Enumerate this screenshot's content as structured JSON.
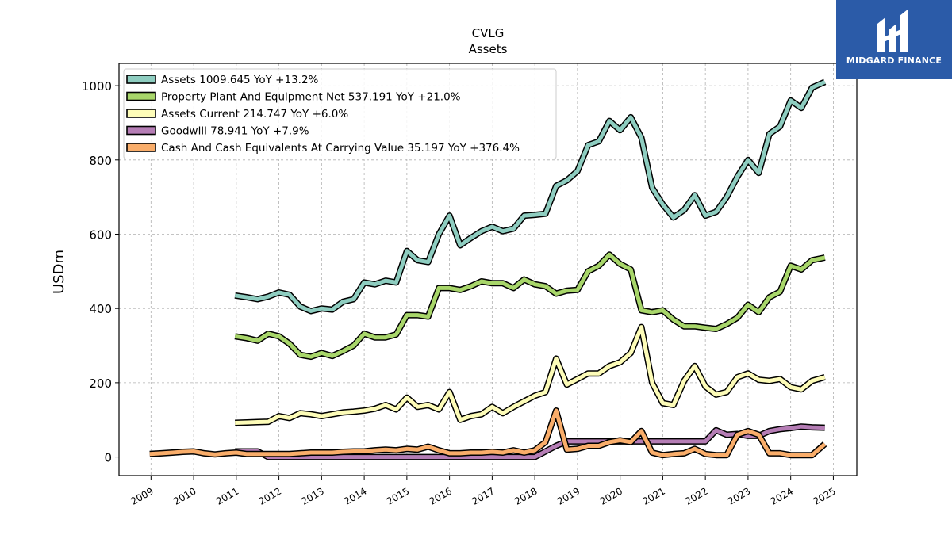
{
  "chart_data": {
    "type": "line",
    "title": "CVLG",
    "subtitle": "Assets",
    "ylabel": "USDm",
    "xlabel": "",
    "ylim": [
      -50,
      1060
    ],
    "xlim": [
      2008.25,
      2025.55
    ],
    "yticks": [
      0,
      200,
      400,
      600,
      800,
      1000
    ],
    "xticks": [
      "2009",
      "2010",
      "2011",
      "2012",
      "2013",
      "2014",
      "2015",
      "2016",
      "2017",
      "2018",
      "2019",
      "2020",
      "2021",
      "2022",
      "2023",
      "2024",
      "2025"
    ],
    "grid": true,
    "legend_position": "top-left",
    "series": [
      {
        "name": "Assets",
        "legend": "Assets  1009.645 YoY +13.2%",
        "color": "#8ecdc0",
        "x": [
          2010.97,
          2011.25,
          2011.5,
          2011.75,
          2012.0,
          2012.25,
          2012.5,
          2012.75,
          2013.0,
          2013.25,
          2013.5,
          2013.75,
          2014.0,
          2014.25,
          2014.5,
          2014.75,
          2015.0,
          2015.25,
          2015.5,
          2015.75,
          2016.0,
          2016.25,
          2016.5,
          2016.75,
          2017.0,
          2017.25,
          2017.5,
          2017.75,
          2018.0,
          2018.25,
          2018.5,
          2018.75,
          2019.0,
          2019.25,
          2019.5,
          2019.75,
          2020.0,
          2020.25,
          2020.5,
          2020.75,
          2021.0,
          2021.25,
          2021.5,
          2021.75,
          2022.0,
          2022.25,
          2022.5,
          2022.75,
          2023.0,
          2023.25,
          2023.5,
          2023.75,
          2024.0,
          2024.25,
          2024.5,
          2024.8
        ],
        "y": [
          435,
          430,
          425,
          432,
          443,
          437,
          405,
          393,
          400,
          397,
          418,
          425,
          470,
          465,
          475,
          470,
          555,
          530,
          525,
          600,
          650,
          570,
          590,
          608,
          620,
          608,
          615,
          650,
          652,
          655,
          730,
          745,
          770,
          840,
          850,
          905,
          880,
          915,
          860,
          725,
          680,
          645,
          665,
          705,
          650,
          660,
          700,
          755,
          800,
          765,
          870,
          890,
          960,
          940,
          995,
          1010
        ]
      },
      {
        "name": "Property Plant And Equipment Net",
        "legend": "Property Plant And Equipment Net  537.191 YoY +21.0%",
        "color": "#a8d66a",
        "x": [
          2010.97,
          2011.25,
          2011.5,
          2011.75,
          2012.0,
          2012.25,
          2012.5,
          2012.75,
          2013.0,
          2013.25,
          2013.5,
          2013.75,
          2014.0,
          2014.25,
          2014.5,
          2014.75,
          2015.0,
          2015.25,
          2015.5,
          2015.75,
          2016.0,
          2016.25,
          2016.5,
          2016.75,
          2017.0,
          2017.25,
          2017.5,
          2017.75,
          2018.0,
          2018.25,
          2018.5,
          2018.75,
          2019.0,
          2019.25,
          2019.5,
          2019.75,
          2020.0,
          2020.25,
          2020.5,
          2020.75,
          2021.0,
          2021.25,
          2021.5,
          2021.75,
          2022.0,
          2022.25,
          2022.5,
          2022.75,
          2023.0,
          2023.25,
          2023.5,
          2023.75,
          2024.0,
          2024.25,
          2024.5,
          2024.8
        ],
        "y": [
          325,
          320,
          313,
          332,
          325,
          305,
          275,
          270,
          280,
          272,
          285,
          300,
          332,
          322,
          322,
          330,
          382,
          382,
          378,
          455,
          455,
          450,
          460,
          473,
          468,
          468,
          455,
          478,
          465,
          460,
          440,
          448,
          450,
          500,
          515,
          545,
          520,
          505,
          395,
          390,
          395,
          370,
          352,
          352,
          348,
          345,
          358,
          375,
          410,
          390,
          430,
          445,
          515,
          505,
          530,
          537
        ]
      },
      {
        "name": "Assets Current",
        "legend": "Assets Current  214.747 YoY +6.0%",
        "color": "#fdfcb8",
        "x": [
          2010.97,
          2011.25,
          2011.5,
          2011.75,
          2012.0,
          2012.25,
          2012.5,
          2012.75,
          2013.0,
          2013.25,
          2013.5,
          2013.75,
          2014.0,
          2014.25,
          2014.5,
          2014.75,
          2015.0,
          2015.25,
          2015.5,
          2015.75,
          2016.0,
          2016.25,
          2016.5,
          2016.75,
          2017.0,
          2017.25,
          2017.5,
          2017.75,
          2018.0,
          2018.25,
          2018.5,
          2018.75,
          2019.0,
          2019.25,
          2019.5,
          2019.75,
          2020.0,
          2020.25,
          2020.5,
          2020.75,
          2021.0,
          2021.25,
          2021.5,
          2021.75,
          2022.0,
          2022.25,
          2022.5,
          2022.75,
          2023.0,
          2023.25,
          2023.5,
          2023.75,
          2024.0,
          2024.25,
          2024.5,
          2024.8
        ],
        "y": [
          92,
          93,
          94,
          95,
          110,
          105,
          118,
          115,
          110,
          115,
          120,
          122,
          125,
          130,
          140,
          128,
          160,
          135,
          140,
          128,
          175,
          100,
          110,
          115,
          135,
          118,
          135,
          150,
          165,
          175,
          265,
          195,
          210,
          225,
          225,
          245,
          255,
          280,
          350,
          200,
          145,
          140,
          205,
          245,
          190,
          168,
          175,
          215,
          225,
          208,
          205,
          210,
          188,
          182,
          205,
          215
        ]
      },
      {
        "name": "Goodwill",
        "legend": "Goodwill  78.941 YoY +7.9%",
        "color": "#b57db5",
        "x": [
          2010.97,
          2011.25,
          2011.5,
          2011.75,
          2012.0,
          2012.25,
          2012.5,
          2012.75,
          2013.0,
          2013.25,
          2013.5,
          2013.75,
          2014.0,
          2014.25,
          2014.5,
          2014.75,
          2015.0,
          2015.25,
          2015.5,
          2015.75,
          2016.0,
          2016.25,
          2016.5,
          2016.75,
          2017.0,
          2017.25,
          2017.5,
          2017.75,
          2018.0,
          2018.25,
          2018.5,
          2018.75,
          2019.0,
          2019.25,
          2019.5,
          2019.75,
          2020.0,
          2020.25,
          2020.5,
          2020.75,
          2021.0,
          2021.25,
          2021.5,
          2021.75,
          2022.0,
          2022.25,
          2022.5,
          2022.75,
          2023.0,
          2023.25,
          2023.5,
          2023.75,
          2024.0,
          2024.25,
          2024.5,
          2024.8
        ],
        "y": [
          15,
          15,
          15,
          0,
          0,
          0,
          0,
          0,
          0,
          0,
          0,
          0,
          0,
          0,
          0,
          0,
          0,
          0,
          0,
          0,
          0,
          0,
          0,
          0,
          0,
          0,
          0,
          0,
          0,
          15,
          30,
          42,
          42,
          42,
          42,
          42,
          42,
          42,
          42,
          42,
          42,
          42,
          42,
          42,
          42,
          72,
          60,
          62,
          57,
          57,
          70,
          75,
          78,
          82,
          80,
          79
        ]
      },
      {
        "name": "Cash And Cash Equivalents At Carrying Value",
        "legend": "Cash And Cash Equivalents At Carrying Value  35.197 YoY +376.4%",
        "color": "#f9ad6a",
        "x": [
          2008.97,
          2009.25,
          2009.5,
          2009.75,
          2010.0,
          2010.25,
          2010.5,
          2010.75,
          2011.0,
          2011.25,
          2011.5,
          2011.75,
          2012.0,
          2012.25,
          2012.5,
          2012.75,
          2013.0,
          2013.25,
          2013.5,
          2013.75,
          2014.0,
          2014.25,
          2014.5,
          2014.75,
          2015.0,
          2015.25,
          2015.5,
          2015.75,
          2016.0,
          2016.25,
          2016.5,
          2016.75,
          2017.0,
          2017.25,
          2017.5,
          2017.75,
          2018.0,
          2018.25,
          2018.5,
          2018.75,
          2019.0,
          2019.25,
          2019.5,
          2019.75,
          2020.0,
          2020.25,
          2020.5,
          2020.75,
          2021.0,
          2021.25,
          2021.5,
          2021.75,
          2022.0,
          2022.25,
          2022.5,
          2022.75,
          2023.0,
          2023.25,
          2023.5,
          2023.75,
          2024.0,
          2024.25,
          2024.5,
          2024.8
        ],
        "y": [
          8,
          10,
          12,
          14,
          15,
          10,
          7,
          10,
          12,
          8,
          8,
          8,
          8,
          8,
          10,
          12,
          12,
          12,
          14,
          15,
          15,
          18,
          20,
          18,
          22,
          20,
          28,
          18,
          10,
          10,
          12,
          12,
          14,
          12,
          18,
          12,
          18,
          40,
          125,
          20,
          22,
          30,
          30,
          40,
          45,
          40,
          70,
          12,
          5,
          8,
          10,
          22,
          8,
          5,
          5,
          60,
          70,
          60,
          10,
          10,
          5,
          5,
          5,
          35
        ]
      }
    ]
  },
  "logo": {
    "text": "MIDGARD FINANCE"
  }
}
